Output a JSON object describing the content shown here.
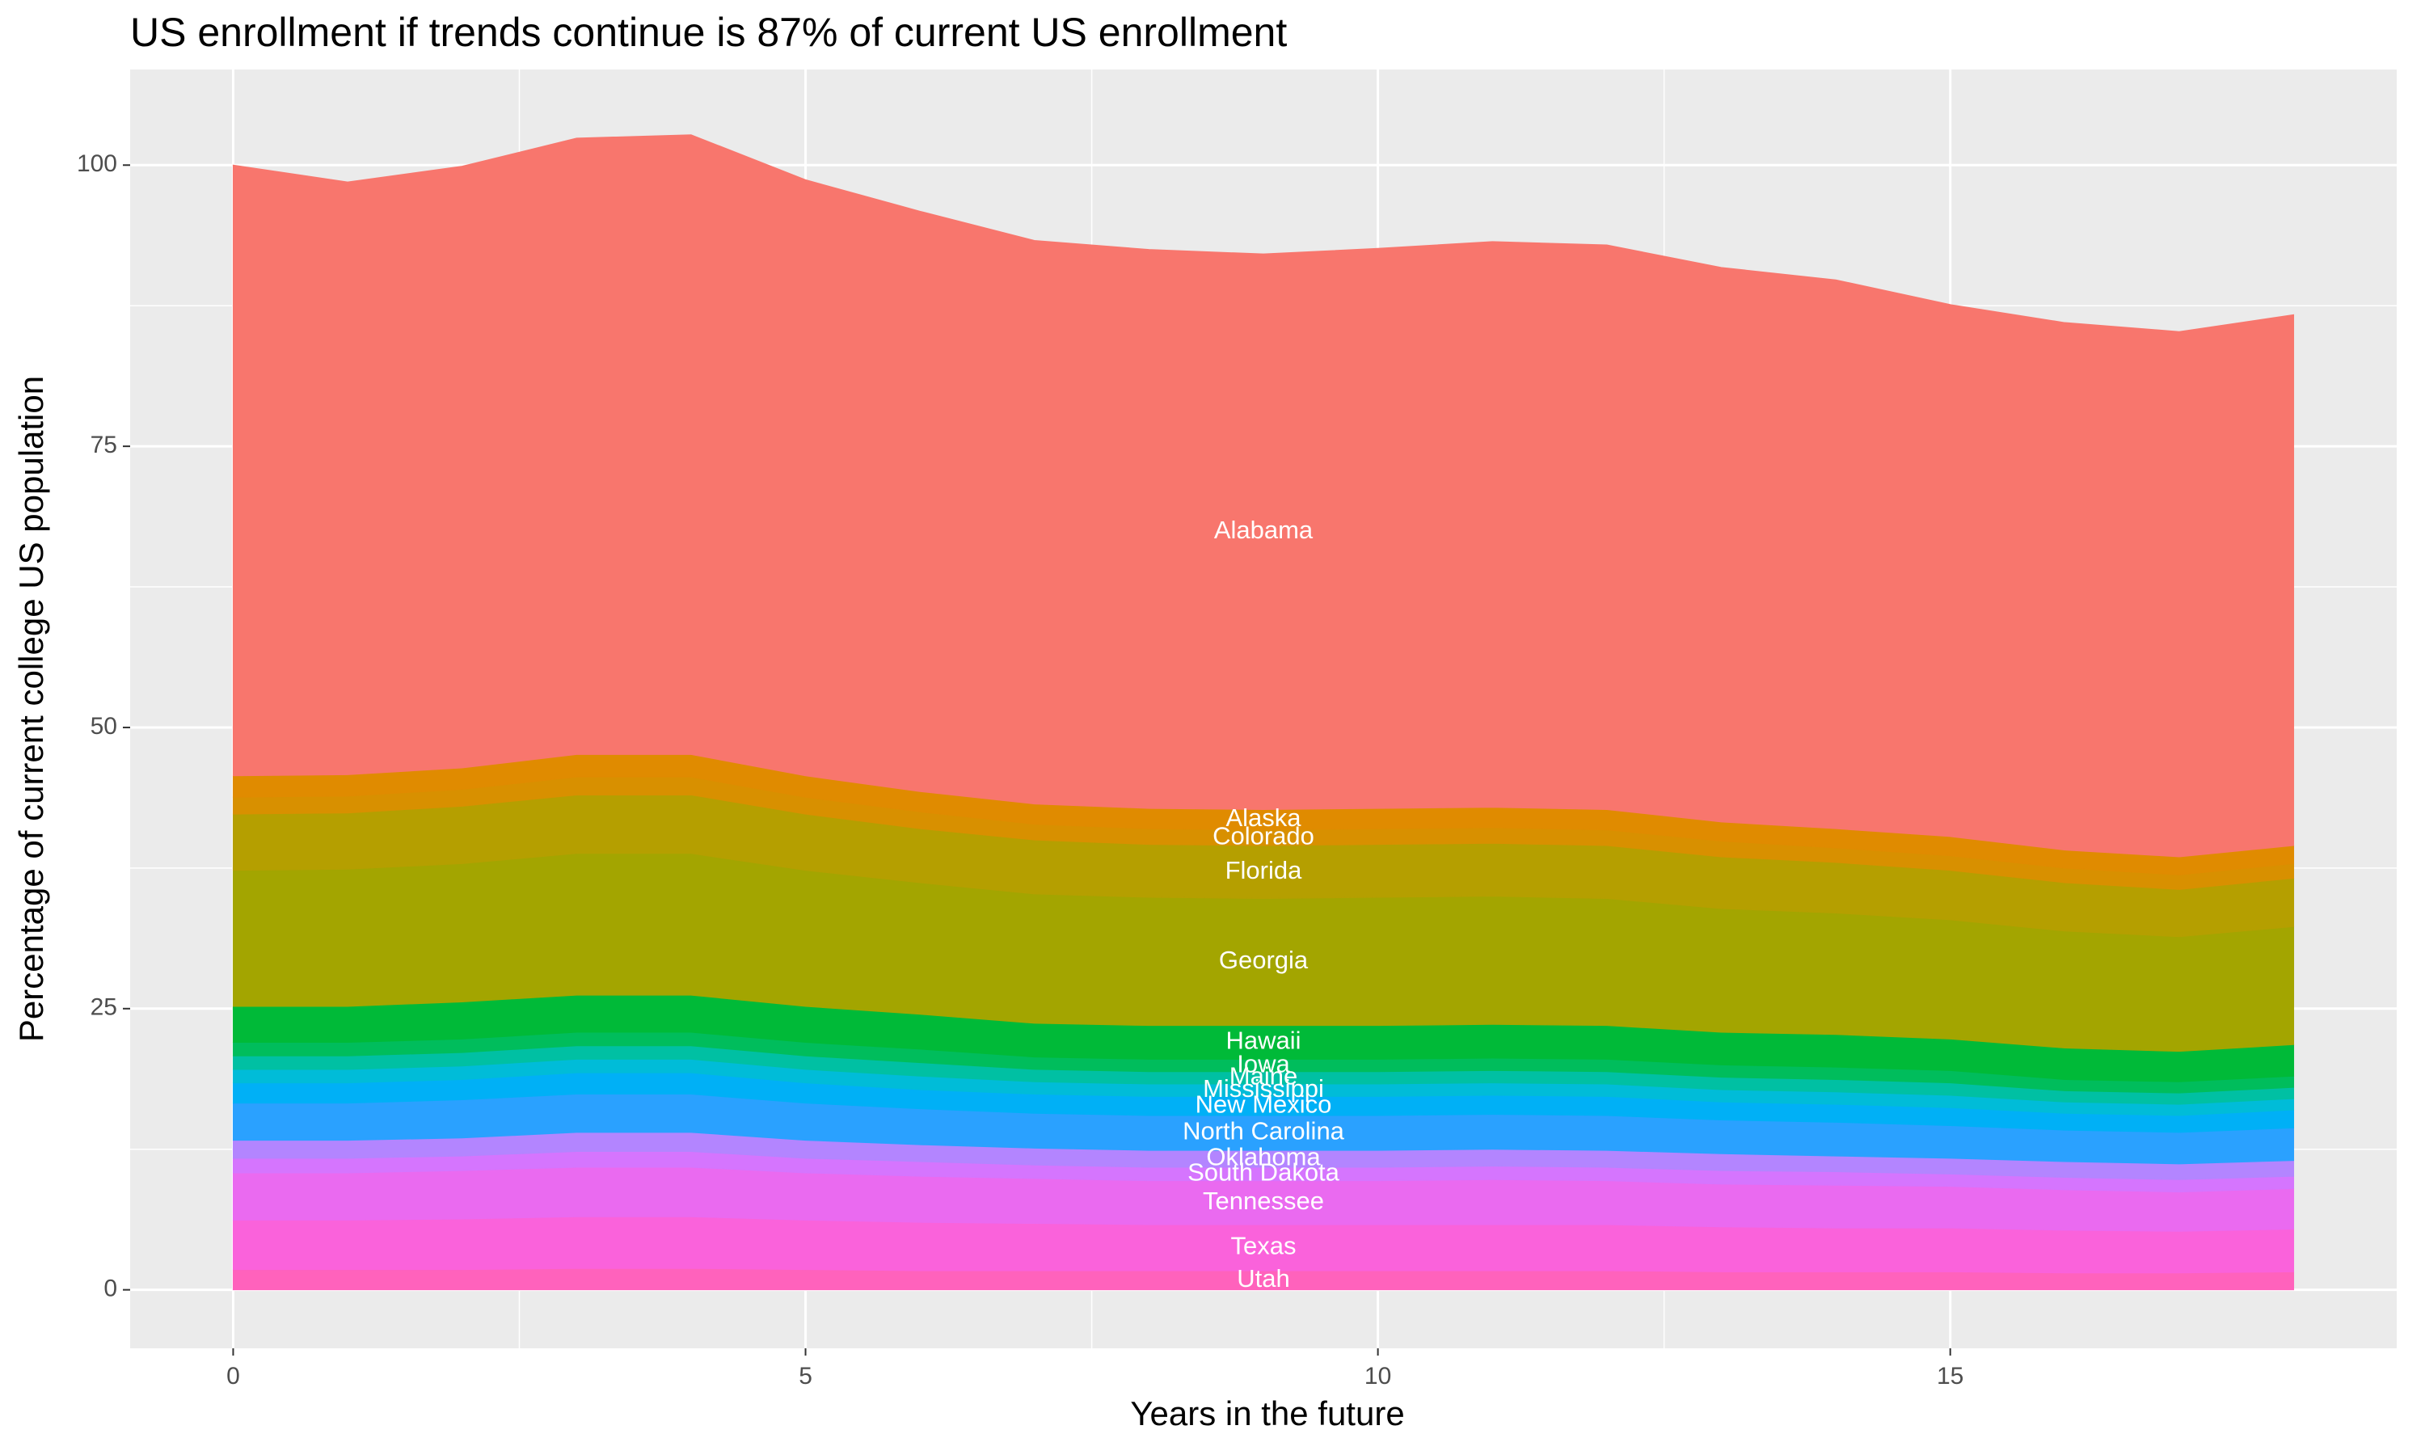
{
  "chart_data": {
    "type": "stacked_area",
    "title": "US enrollment if trends continue is 87% of current US enrollment",
    "x_label": "Years in the future",
    "y_label": "Percentage of current college US population",
    "x": [
      0,
      1,
      2,
      3,
      4,
      5,
      6,
      7,
      8,
      9,
      10,
      11,
      12,
      13,
      14,
      15,
      16,
      17,
      18
    ],
    "xlim": [
      -0.9,
      18.9
    ],
    "ylim": [
      -5.2,
      108.5
    ],
    "xticks": [
      0,
      5,
      10,
      15
    ],
    "yticks": [
      0,
      25,
      50,
      75,
      100
    ],
    "grid": true,
    "label_at_index": 9,
    "series": [
      {
        "name": "Utah",
        "color": "#FF62BC",
        "values": [
          1.8,
          1.8,
          1.8,
          1.9,
          1.9,
          1.8,
          1.7,
          1.7,
          1.7,
          1.7,
          1.7,
          1.7,
          1.7,
          1.6,
          1.6,
          1.6,
          1.5,
          1.5,
          1.6
        ]
      },
      {
        "name": "Texas",
        "color": "#FA62DB",
        "values": [
          4.4,
          4.4,
          4.5,
          4.6,
          4.6,
          4.4,
          4.3,
          4.2,
          4.1,
          4.1,
          4.1,
          4.1,
          4.1,
          4.0,
          3.9,
          3.9,
          3.8,
          3.7,
          3.8
        ]
      },
      {
        "name": "Tennessee",
        "color": "#EA6AF0",
        "values": [
          4.2,
          4.2,
          4.3,
          4.4,
          4.4,
          4.2,
          4.1,
          4.0,
          3.9,
          3.9,
          3.9,
          4.0,
          3.9,
          3.8,
          3.8,
          3.7,
          3.6,
          3.5,
          3.6
        ]
      },
      {
        "name": "South Dakota",
        "color": "#D575FE",
        "values": [
          1.3,
          1.3,
          1.3,
          1.4,
          1.4,
          1.3,
          1.3,
          1.2,
          1.2,
          1.2,
          1.2,
          1.2,
          1.2,
          1.2,
          1.2,
          1.1,
          1.1,
          1.1,
          1.1
        ]
      },
      {
        "name": "Oklahoma",
        "color": "#B385FF",
        "values": [
          1.6,
          1.6,
          1.6,
          1.7,
          1.7,
          1.6,
          1.5,
          1.5,
          1.5,
          1.5,
          1.5,
          1.5,
          1.5,
          1.5,
          1.4,
          1.4,
          1.4,
          1.4,
          1.4
        ]
      },
      {
        "name": "North Carolina",
        "color": "#2AA1FF",
        "values": [
          3.3,
          3.3,
          3.4,
          3.4,
          3.4,
          3.3,
          3.2,
          3.1,
          3.1,
          3.1,
          3.1,
          3.1,
          3.1,
          3.0,
          3.0,
          2.9,
          2.8,
          2.8,
          2.9
        ]
      },
      {
        "name": "New Mexico",
        "color": "#00B0F6",
        "values": [
          1.8,
          1.8,
          1.8,
          1.9,
          1.9,
          1.8,
          1.7,
          1.7,
          1.7,
          1.7,
          1.7,
          1.7,
          1.7,
          1.6,
          1.6,
          1.6,
          1.5,
          1.5,
          1.6
        ]
      },
      {
        "name": "Mississippi",
        "color": "#00BCD8",
        "values": [
          1.2,
          1.2,
          1.2,
          1.2,
          1.2,
          1.2,
          1.2,
          1.1,
          1.1,
          1.1,
          1.1,
          1.1,
          1.1,
          1.1,
          1.1,
          1.1,
          1.0,
          1.0,
          1.0
        ]
      },
      {
        "name": "Maine",
        "color": "#00C0A3",
        "values": [
          1.2,
          1.2,
          1.2,
          1.2,
          1.2,
          1.2,
          1.2,
          1.1,
          1.1,
          1.1,
          1.1,
          1.1,
          1.1,
          1.1,
          1.1,
          1.1,
          1.0,
          1.0,
          1.0
        ]
      },
      {
        "name": "Iowa",
        "color": "#00BD5C",
        "values": [
          1.2,
          1.2,
          1.2,
          1.2,
          1.2,
          1.2,
          1.2,
          1.1,
          1.1,
          1.1,
          1.1,
          1.1,
          1.1,
          1.1,
          1.1,
          1.1,
          1.0,
          1.0,
          1.0
        ]
      },
      {
        "name": "Hawaii",
        "color": "#00BA38",
        "values": [
          3.2,
          3.2,
          3.3,
          3.3,
          3.3,
          3.2,
          3.1,
          3.0,
          3.0,
          3.0,
          3.0,
          3.0,
          3.0,
          2.9,
          2.9,
          2.8,
          2.8,
          2.7,
          2.8
        ]
      },
      {
        "name": "Georgia",
        "color": "#A3A500",
        "values": [
          12.1,
          12.2,
          12.3,
          12.6,
          12.6,
          12.1,
          11.7,
          11.5,
          11.4,
          11.3,
          11.4,
          11.4,
          11.3,
          11.0,
          10.8,
          10.6,
          10.4,
          10.2,
          10.5
        ]
      },
      {
        "name": "Florida",
        "color": "#B59F00",
        "values": [
          5.0,
          5.0,
          5.1,
          5.2,
          5.2,
          5.0,
          4.8,
          4.8,
          4.7,
          4.7,
          4.7,
          4.7,
          4.7,
          4.6,
          4.5,
          4.4,
          4.3,
          4.2,
          4.3
        ]
      },
      {
        "name": "Colorado",
        "color": "#D89000",
        "values": [
          1.5,
          1.5,
          1.5,
          1.6,
          1.6,
          1.5,
          1.5,
          1.4,
          1.4,
          1.4,
          1.4,
          1.4,
          1.4,
          1.4,
          1.3,
          1.3,
          1.3,
          1.3,
          1.3
        ]
      },
      {
        "name": "Alaska",
        "color": "#E08B00",
        "values": [
          1.9,
          1.9,
          1.9,
          2.0,
          2.0,
          1.9,
          1.8,
          1.8,
          1.8,
          1.8,
          1.8,
          1.8,
          1.8,
          1.7,
          1.7,
          1.7,
          1.6,
          1.6,
          1.6
        ]
      },
      {
        "name": "Alabama",
        "color": "#F8766D",
        "values": [
          54.3,
          52.7,
          53.5,
          54.8,
          55.1,
          53.0,
          51.6,
          50.1,
          49.7,
          49.4,
          49.8,
          50.3,
          50.2,
          49.3,
          48.8,
          47.3,
          46.9,
          46.7,
          47.2
        ]
      }
    ]
  }
}
